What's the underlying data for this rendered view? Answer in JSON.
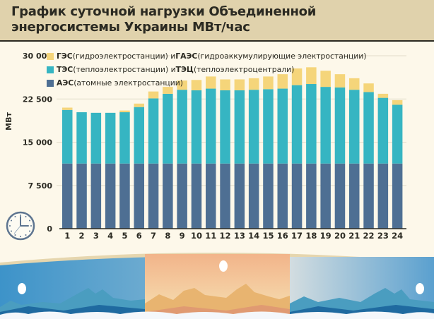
{
  "title": {
    "line1": "График суточной нагрузки Объединенной",
    "line2": "энергосистемы Украины МВт/час"
  },
  "legend": [
    {
      "key": "hydro",
      "bold1": "ГЭС",
      "text1": " (гидроэлектростанции) и ",
      "bold2": "ГАЭС",
      "text2": " (гидроаккумулирующие электростанции)",
      "color": "#f5d57a"
    },
    {
      "key": "thermal",
      "bold1": "ТЭС",
      "text1": " (теплоэлектростанции) и ",
      "bold2": "ТЭЦ",
      "text2": " (теплоэлектроцентрали)",
      "color": "#36b5c2"
    },
    {
      "key": "nuclear",
      "bold1": "АЭС",
      "text1": " (атомные электростанции)",
      "bold2": "",
      "text2": "",
      "color": "#4e6f93"
    }
  ],
  "chart_data": {
    "type": "bar",
    "stacked": true,
    "title": "График суточной нагрузки Объединенной энергосистемы Украины МВт/час",
    "xlabel": "",
    "ylabel": "МВт",
    "ylim": [
      0,
      30000
    ],
    "yticks": [
      0,
      7500,
      15000,
      22500,
      30000
    ],
    "ytick_labels": [
      "0",
      "7 500",
      "15 000",
      "22 500",
      "30 000"
    ],
    "grid": true,
    "legend_position": "top-left",
    "categories": [
      "1",
      "2",
      "3",
      "4",
      "5",
      "6",
      "7",
      "8",
      "9",
      "10",
      "11",
      "12",
      "13",
      "14",
      "15",
      "16",
      "17",
      "18",
      "19",
      "20",
      "21",
      "22",
      "23",
      "24"
    ],
    "series": [
      {
        "name": "АЭС (атомные электростанции)",
        "color": "#4e6f93",
        "values": [
          11300,
          11300,
          11300,
          11300,
          11300,
          11300,
          11300,
          11300,
          11300,
          11300,
          11300,
          11300,
          11300,
          11300,
          11300,
          11300,
          11300,
          11300,
          11300,
          11300,
          11300,
          11300,
          11300,
          11300
        ]
      },
      {
        "name": "ТЭС (теплоэлектростанции) и ТЭЦ (теплоэлектроцентрали)",
        "color": "#36b5c2",
        "values": [
          9300,
          8900,
          8800,
          8800,
          8900,
          9800,
          11300,
          12100,
          12800,
          12700,
          13000,
          12700,
          12700,
          12800,
          12900,
          13000,
          13600,
          13800,
          13300,
          13200,
          12800,
          12400,
          11400,
          10200
        ]
      },
      {
        "name": "ГЭС (гидроэлектростанции) и ГАЭС (гидроаккумулирующие электростанции)",
        "color": "#f5d57a",
        "values": [
          400,
          0,
          0,
          0,
          300,
          600,
          1200,
          1200,
          1600,
          1800,
          2100,
          1900,
          1900,
          2000,
          2200,
          2500,
          2900,
          2900,
          2800,
          2300,
          2000,
          1500,
          700,
          800
        ]
      }
    ]
  }
}
